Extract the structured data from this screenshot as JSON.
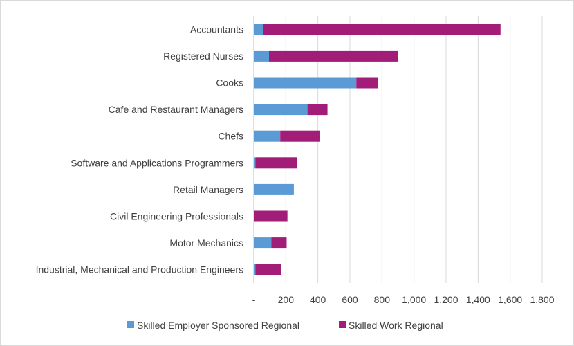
{
  "chart_data": {
    "type": "bar",
    "orientation": "horizontal",
    "stacked": true,
    "categories": [
      "Accountants",
      "Registered Nurses",
      "Cooks",
      "Cafe and Restaurant Managers",
      "Chefs",
      "Software and Applications Programmers",
      "Retail Managers",
      "Civil Engineering Professionals",
      "Motor Mechanics",
      "Industrial, Mechanical and Production Engineers"
    ],
    "series": [
      {
        "name": "Skilled Employer Sponsored Regional",
        "color": "#5b9bd5",
        "values": [
          60,
          95,
          640,
          335,
          165,
          10,
          250,
          0,
          110,
          10
        ]
      },
      {
        "name": "Skilled Work Regional",
        "color": "#a21d78",
        "values": [
          1480,
          805,
          135,
          125,
          245,
          260,
          0,
          210,
          95,
          160
        ]
      }
    ],
    "xlim": [
      0,
      1800
    ],
    "xticks": [
      0,
      200,
      400,
      600,
      800,
      1000,
      1200,
      1400,
      1600,
      1800
    ],
    "xtick_labels": [
      "-",
      "200",
      "400",
      "600",
      "800",
      "1,000",
      "1,200",
      "1,400",
      "1,600",
      "1,800"
    ],
    "grid": "vertical",
    "legend_position": "bottom"
  }
}
